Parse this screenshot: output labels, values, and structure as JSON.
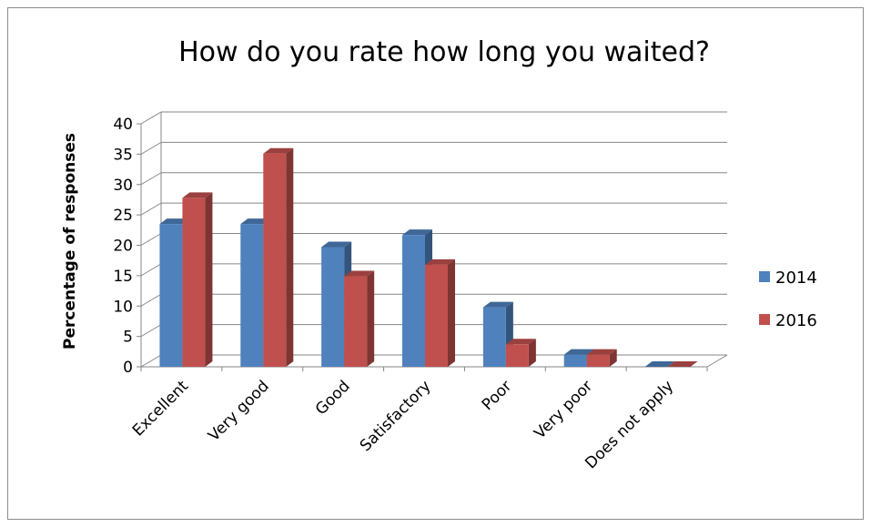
{
  "chart_data": {
    "type": "bar",
    "title": "How do you rate how long you waited?",
    "xlabel": "",
    "ylabel": "Percentage of responses",
    "ylim": [
      0,
      40
    ],
    "yticks": [
      0,
      5,
      10,
      15,
      20,
      25,
      30,
      35,
      40
    ],
    "grid": true,
    "legend_position": "right",
    "categories": [
      "Excellent",
      "Very good",
      "Good",
      "Satisfactory",
      "Poor",
      "Very poor",
      "Does not apply"
    ],
    "series": [
      {
        "name": "2014",
        "color": "#4f81bd",
        "values": [
          23.5,
          23.5,
          19.7,
          21.7,
          9.8,
          2,
          0
        ]
      },
      {
        "name": "2016",
        "color": "#c0504d",
        "values": [
          27.8,
          35.1,
          14.9,
          16.8,
          3.7,
          2,
          0
        ]
      }
    ]
  }
}
